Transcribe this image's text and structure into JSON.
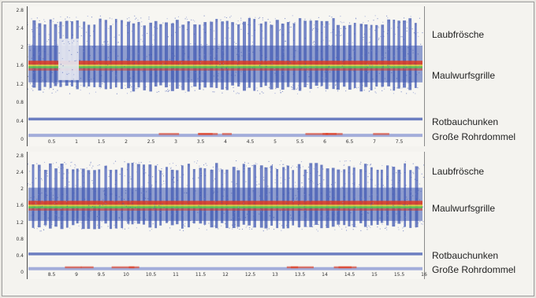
{
  "chart_data": [
    {
      "type": "spectrogram",
      "y_ticks": [
        "2.8",
        "2.4",
        "2",
        "1.6",
        "1.2",
        "0.8",
        "0.4",
        "0"
      ],
      "ylim": [
        0,
        2.8
      ],
      "x_ticks": [
        "0.5",
        "1",
        "1.5",
        "2",
        "2.5",
        "3",
        "3.5",
        "4",
        "4.5",
        "5",
        "5.5",
        "6",
        "6.5",
        "7",
        "7.5"
      ],
      "xlim": [
        0,
        8
      ],
      "bands": [
        {
          "name": "Laubfrösche",
          "freq_range": [
            1.1,
            2.6
          ],
          "label_freq": 2.35
        },
        {
          "name": "Maulwurfsgrille",
          "freq": 1.6,
          "label_freq": 1.5
        },
        {
          "name": "Rotbauchunken",
          "freq": 0.45,
          "label_freq": 0.45
        },
        {
          "name": "Große Rohrdommel",
          "freq": 0.1,
          "label_freq": 0.05
        }
      ]
    },
    {
      "type": "spectrogram",
      "y_ticks": [
        "2.8",
        "2.4",
        "2",
        "1.6",
        "1.2",
        "0.8",
        "0.4",
        "0"
      ],
      "ylim": [
        0,
        2.8
      ],
      "x_ticks": [
        "8.5",
        "9",
        "9.5",
        "10",
        "10.5",
        "11",
        "11.5",
        "12",
        "12.5",
        "13",
        "13.5",
        "14",
        "14.5",
        "15",
        "15.5",
        "16"
      ],
      "xlim": [
        8,
        16
      ],
      "bands": [
        {
          "name": "Laubfrösche",
          "freq_range": [
            1.1,
            2.6
          ],
          "label_freq": 2.35
        },
        {
          "name": "Maulwurfsgrille",
          "freq": 1.6,
          "label_freq": 1.5
        },
        {
          "name": "Rotbauchunken",
          "freq": 0.45,
          "label_freq": 0.45
        },
        {
          "name": "Große Rohrdommel",
          "freq": 0.1,
          "label_freq": 0.05
        }
      ]
    }
  ],
  "colors": {
    "background": "#f7f6f2",
    "noise_blue": "#3d55b0",
    "noise_light": "#7f8fd0",
    "cricket_red": "#e03a1e",
    "cricket_green": "#59c24a",
    "cricket_yellow": "#e8d23a"
  }
}
